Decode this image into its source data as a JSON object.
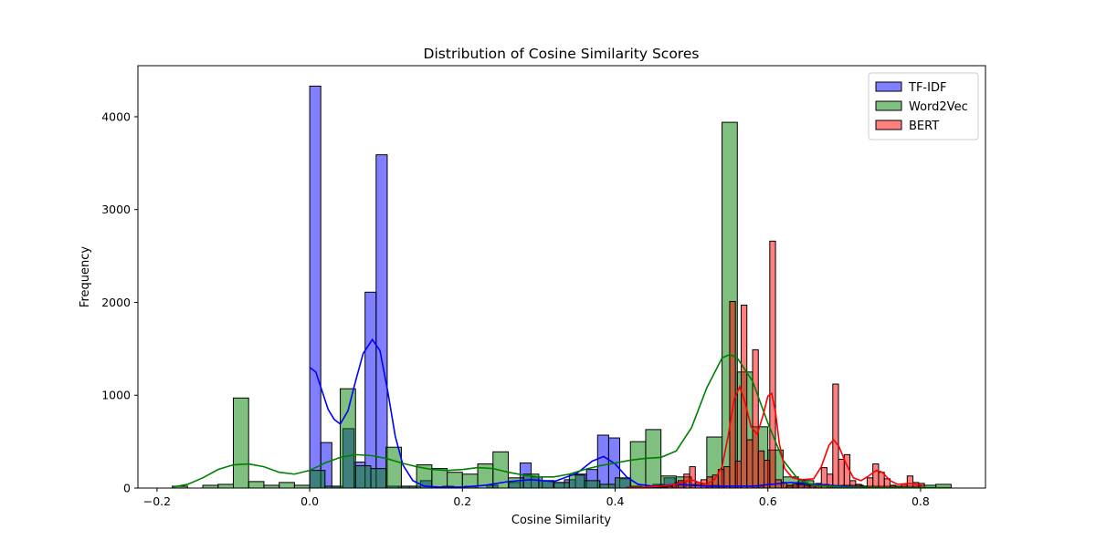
{
  "chart_data": {
    "type": "bar",
    "title": "Distribution of Cosine Similarity Scores",
    "xlabel": "Cosine Similarity",
    "ylabel": "Frequency",
    "xlim": [
      -0.225,
      0.885
    ],
    "ylim": [
      0,
      4550
    ],
    "xticks": [
      {
        "value": -0.2,
        "label": "−0.2"
      },
      {
        "value": 0.0,
        "label": "0.0"
      },
      {
        "value": 0.2,
        "label": "0.2"
      },
      {
        "value": 0.4,
        "label": "0.4"
      },
      {
        "value": 0.6,
        "label": "0.6"
      },
      {
        "value": 0.8,
        "label": "0.8"
      }
    ],
    "yticks": [
      {
        "value": 0,
        "label": "0"
      },
      {
        "value": 1000,
        "label": "1000"
      },
      {
        "value": 2000,
        "label": "2000"
      },
      {
        "value": 3000,
        "label": "3000"
      },
      {
        "value": 4000,
        "label": "4000"
      }
    ],
    "grid": false,
    "legend_position": "top-right",
    "series": [
      {
        "name": "TF-IDF",
        "color": "#0000ff",
        "bin_width": 0.0145,
        "bins": [
          [
            0.0,
            4330
          ],
          [
            0.0145,
            490
          ],
          [
            0.029,
            20
          ],
          [
            0.0435,
            640
          ],
          [
            0.058,
            280
          ],
          [
            0.0725,
            2110
          ],
          [
            0.087,
            3590
          ],
          [
            0.1015,
            20
          ],
          [
            0.116,
            20
          ],
          [
            0.1305,
            20
          ],
          [
            0.145,
            80
          ],
          [
            0.174,
            20
          ],
          [
            0.203,
            20
          ],
          [
            0.232,
            30
          ],
          [
            0.261,
            60
          ],
          [
            0.2755,
            270
          ],
          [
            0.29,
            120
          ],
          [
            0.3045,
            80
          ],
          [
            0.319,
            60
          ],
          [
            0.3335,
            90
          ],
          [
            0.348,
            150
          ],
          [
            0.3625,
            200
          ],
          [
            0.377,
            570
          ],
          [
            0.3915,
            540
          ],
          [
            0.406,
            100
          ],
          [
            0.4205,
            20
          ],
          [
            0.4495,
            40
          ],
          [
            0.464,
            110
          ],
          [
            0.4785,
            60
          ],
          [
            0.522,
            30
          ],
          [
            0.5365,
            20
          ],
          [
            0.551,
            20
          ],
          [
            0.58,
            20
          ],
          [
            0.6235,
            20
          ],
          [
            0.638,
            60
          ],
          [
            0.6525,
            40
          ],
          [
            0.6815,
            20
          ],
          [
            0.696,
            30
          ],
          [
            0.7105,
            30
          ]
        ],
        "kde": [
          [
            0.0,
            1300
          ],
          [
            0.008,
            1250
          ],
          [
            0.016,
            1050
          ],
          [
            0.024,
            850
          ],
          [
            0.032,
            740
          ],
          [
            0.04,
            690
          ],
          [
            0.05,
            830
          ],
          [
            0.06,
            1150
          ],
          [
            0.07,
            1450
          ],
          [
            0.082,
            1600
          ],
          [
            0.092,
            1480
          ],
          [
            0.102,
            1050
          ],
          [
            0.112,
            560
          ],
          [
            0.122,
            250
          ],
          [
            0.135,
            80
          ],
          [
            0.15,
            20
          ],
          [
            0.17,
            10
          ],
          [
            0.2,
            10
          ],
          [
            0.23,
            30
          ],
          [
            0.26,
            70
          ],
          [
            0.29,
            90
          ],
          [
            0.32,
            70
          ],
          [
            0.35,
            160
          ],
          [
            0.37,
            290
          ],
          [
            0.385,
            340
          ],
          [
            0.4,
            260
          ],
          [
            0.415,
            120
          ],
          [
            0.43,
            40
          ],
          [
            0.45,
            20
          ],
          [
            0.48,
            40
          ],
          [
            0.52,
            20
          ],
          [
            0.58,
            20
          ],
          [
            0.63,
            60
          ],
          [
            0.66,
            40
          ],
          [
            0.7,
            20
          ],
          [
            0.72,
            10
          ]
        ]
      },
      {
        "name": "Word2Vec",
        "color": "#008000",
        "bin_width": 0.02,
        "bins": [
          [
            -0.18,
            20
          ],
          [
            -0.14,
            30
          ],
          [
            -0.12,
            40
          ],
          [
            -0.1,
            970
          ],
          [
            -0.08,
            70
          ],
          [
            -0.06,
            30
          ],
          [
            -0.04,
            60
          ],
          [
            -0.02,
            30
          ],
          [
            0.0,
            190
          ],
          [
            0.02,
            20
          ],
          [
            0.04,
            1070
          ],
          [
            0.06,
            240
          ],
          [
            0.08,
            210
          ],
          [
            0.1,
            440
          ],
          [
            0.12,
            20
          ],
          [
            0.14,
            250
          ],
          [
            0.16,
            210
          ],
          [
            0.18,
            170
          ],
          [
            0.2,
            150
          ],
          [
            0.22,
            260
          ],
          [
            0.24,
            390
          ],
          [
            0.26,
            110
          ],
          [
            0.28,
            150
          ],
          [
            0.3,
            80
          ],
          [
            0.32,
            60
          ],
          [
            0.34,
            140
          ],
          [
            0.36,
            80
          ],
          [
            0.38,
            40
          ],
          [
            0.4,
            110
          ],
          [
            0.42,
            500
          ],
          [
            0.44,
            630
          ],
          [
            0.46,
            130
          ],
          [
            0.48,
            120
          ],
          [
            0.5,
            40
          ],
          [
            0.52,
            550
          ],
          [
            0.54,
            3940
          ],
          [
            0.56,
            1250
          ],
          [
            0.58,
            660
          ],
          [
            0.6,
            410
          ],
          [
            0.62,
            120
          ],
          [
            0.64,
            80
          ],
          [
            0.66,
            40
          ],
          [
            0.68,
            20
          ],
          [
            0.7,
            30
          ],
          [
            0.72,
            20
          ],
          [
            0.74,
            20
          ],
          [
            0.76,
            20
          ],
          [
            0.78,
            20
          ],
          [
            0.8,
            30
          ],
          [
            0.82,
            40
          ]
        ],
        "kde": [
          [
            -0.18,
            10
          ],
          [
            -0.16,
            40
          ],
          [
            -0.14,
            110
          ],
          [
            -0.12,
            200
          ],
          [
            -0.1,
            250
          ],
          [
            -0.08,
            260
          ],
          [
            -0.06,
            230
          ],
          [
            -0.04,
            170
          ],
          [
            -0.02,
            150
          ],
          [
            0.0,
            190
          ],
          [
            0.02,
            270
          ],
          [
            0.04,
            330
          ],
          [
            0.06,
            360
          ],
          [
            0.08,
            350
          ],
          [
            0.1,
            320
          ],
          [
            0.12,
            270
          ],
          [
            0.14,
            230
          ],
          [
            0.16,
            200
          ],
          [
            0.18,
            190
          ],
          [
            0.2,
            200
          ],
          [
            0.22,
            220
          ],
          [
            0.24,
            210
          ],
          [
            0.26,
            170
          ],
          [
            0.28,
            140
          ],
          [
            0.3,
            120
          ],
          [
            0.32,
            120
          ],
          [
            0.34,
            150
          ],
          [
            0.36,
            200
          ],
          [
            0.38,
            240
          ],
          [
            0.4,
            270
          ],
          [
            0.42,
            300
          ],
          [
            0.44,
            320
          ],
          [
            0.46,
            330
          ],
          [
            0.48,
            400
          ],
          [
            0.5,
            650
          ],
          [
            0.52,
            1080
          ],
          [
            0.54,
            1400
          ],
          [
            0.55,
            1440
          ],
          [
            0.56,
            1400
          ],
          [
            0.58,
            1150
          ],
          [
            0.6,
            700
          ],
          [
            0.62,
            300
          ],
          [
            0.64,
            90
          ],
          [
            0.66,
            30
          ],
          [
            0.7,
            10
          ],
          [
            0.75,
            5
          ],
          [
            0.8,
            5
          ],
          [
            0.84,
            5
          ]
        ]
      },
      {
        "name": "BERT",
        "color": "#ff0000",
        "bin_width": 0.0075,
        "bins": [
          [
            0.415,
            10
          ],
          [
            0.4225,
            10
          ],
          [
            0.43,
            10
          ],
          [
            0.4375,
            10
          ],
          [
            0.445,
            10
          ],
          [
            0.4525,
            10
          ],
          [
            0.46,
            10
          ],
          [
            0.4675,
            20
          ],
          [
            0.475,
            40
          ],
          [
            0.4825,
            80
          ],
          [
            0.49,
            150
          ],
          [
            0.4975,
            230
          ],
          [
            0.505,
            60
          ],
          [
            0.5125,
            90
          ],
          [
            0.52,
            120
          ],
          [
            0.5275,
            140
          ],
          [
            0.535,
            200
          ],
          [
            0.5425,
            230
          ],
          [
            0.55,
            2010
          ],
          [
            0.5575,
            290
          ],
          [
            0.565,
            1970
          ],
          [
            0.5725,
            520
          ],
          [
            0.58,
            1490
          ],
          [
            0.5875,
            400
          ],
          [
            0.595,
            300
          ],
          [
            0.6025,
            2660
          ],
          [
            0.61,
            90
          ],
          [
            0.6175,
            60
          ],
          [
            0.625,
            30
          ],
          [
            0.6325,
            40
          ],
          [
            0.64,
            40
          ],
          [
            0.6475,
            30
          ],
          [
            0.655,
            30
          ],
          [
            0.6625,
            50
          ],
          [
            0.67,
            220
          ],
          [
            0.6775,
            150
          ],
          [
            0.685,
            1120
          ],
          [
            0.6925,
            310
          ],
          [
            0.7,
            360
          ],
          [
            0.7075,
            80
          ],
          [
            0.715,
            40
          ],
          [
            0.7225,
            20
          ],
          [
            0.73,
            110
          ],
          [
            0.7375,
            260
          ],
          [
            0.745,
            170
          ],
          [
            0.7525,
            100
          ],
          [
            0.76,
            30
          ],
          [
            0.7675,
            20
          ],
          [
            0.775,
            40
          ],
          [
            0.7825,
            130
          ],
          [
            0.79,
            60
          ],
          [
            0.7975,
            50
          ]
        ],
        "kde": [
          [
            0.415,
            5
          ],
          [
            0.44,
            10
          ],
          [
            0.46,
            20
          ],
          [
            0.48,
            40
          ],
          [
            0.49,
            70
          ],
          [
            0.5,
            90
          ],
          [
            0.51,
            60
          ],
          [
            0.52,
            40
          ],
          [
            0.53,
            90
          ],
          [
            0.54,
            230
          ],
          [
            0.548,
            560
          ],
          [
            0.556,
            960
          ],
          [
            0.563,
            1090
          ],
          [
            0.57,
            930
          ],
          [
            0.578,
            660
          ],
          [
            0.586,
            580
          ],
          [
            0.594,
            790
          ],
          [
            0.6,
            990
          ],
          [
            0.605,
            1020
          ],
          [
            0.61,
            820
          ],
          [
            0.615,
            480
          ],
          [
            0.622,
            210
          ],
          [
            0.632,
            110
          ],
          [
            0.645,
            90
          ],
          [
            0.66,
            100
          ],
          [
            0.67,
            230
          ],
          [
            0.68,
            460
          ],
          [
            0.686,
            520
          ],
          [
            0.693,
            450
          ],
          [
            0.702,
            270
          ],
          [
            0.712,
            110
          ],
          [
            0.722,
            80
          ],
          [
            0.732,
            130
          ],
          [
            0.742,
            190
          ],
          [
            0.75,
            170
          ],
          [
            0.76,
            80
          ],
          [
            0.77,
            40
          ],
          [
            0.785,
            50
          ],
          [
            0.795,
            40
          ],
          [
            0.8,
            30
          ]
        ]
      }
    ]
  }
}
